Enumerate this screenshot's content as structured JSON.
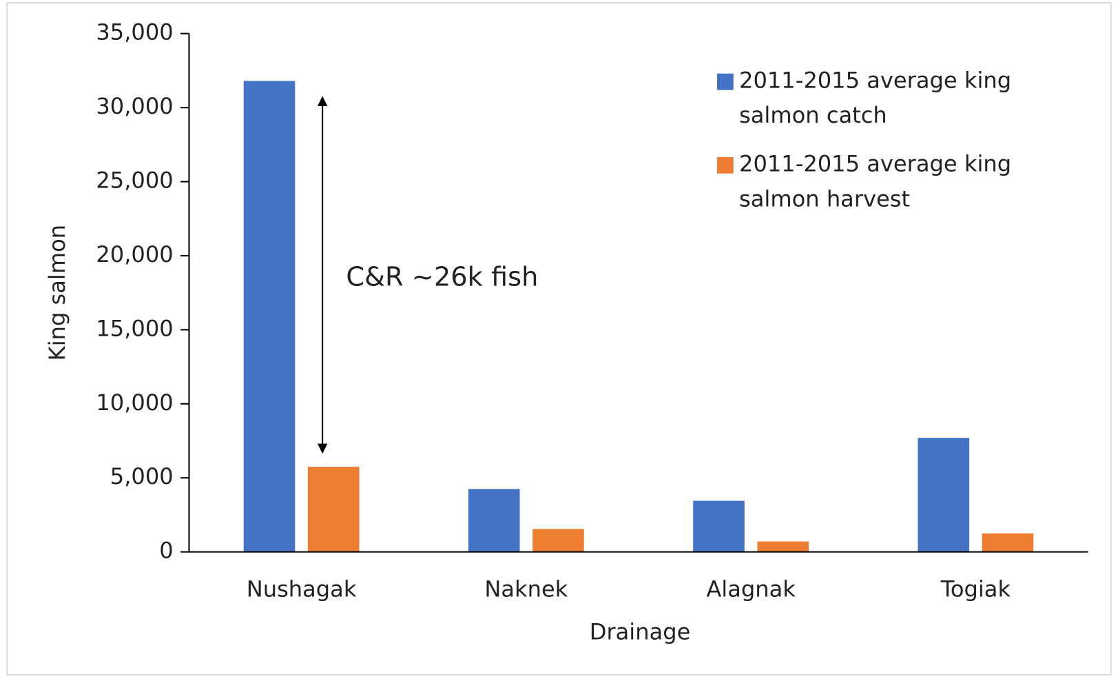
{
  "chart_data": {
    "type": "bar",
    "categories": [
      "Nushagak",
      "Naknek",
      "Alagnak",
      "Togiak"
    ],
    "series": [
      {
        "name": "2011-2015 average king salmon catch",
        "color": "#4472c4",
        "values": [
          31800,
          4250,
          3450,
          7700
        ]
      },
      {
        "name": "2011-2015 average king salmon harvest",
        "color": "#ed7d31",
        "values": [
          5750,
          1550,
          700,
          1250
        ]
      }
    ],
    "ylim": [
      0,
      35000
    ],
    "yticks": [
      0,
      {
        "value": 5000,
        "label": "5,000"
      },
      {
        "value": 10000,
        "label": "10,000"
      },
      {
        "value": 15000,
        "label": "15,000"
      },
      {
        "value": 20000,
        "label": "20,000"
      },
      {
        "value": 25000,
        "label": "25,000"
      },
      {
        "value": 30000,
        "label": "30,000"
      },
      {
        "value": 35000,
        "label": "35,000"
      }
    ],
    "xlabel": "Drainage",
    "ylabel": "King salmon",
    "annotation": "C&R ~26k fish",
    "legend": "upper right"
  }
}
